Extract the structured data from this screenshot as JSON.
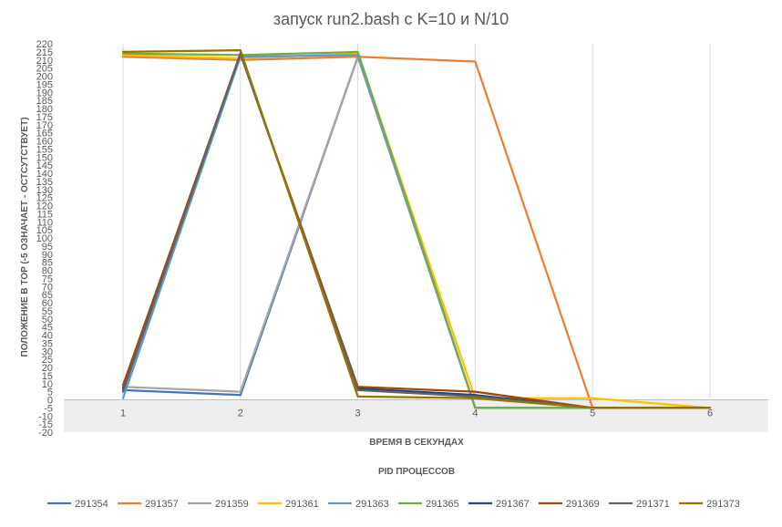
{
  "chart_data": {
    "type": "line",
    "title": "запуск run2.bash с K=10 и N/10",
    "xlabel": "ВРЕМЯ В СЕКУНДАХ",
    "ylabel": "ПОЛОЖЕНИЕ В TOP (-5 ОЗНАЧАЕТ - ОСТСУТСТВУЕТ)",
    "legend_title": "PID ПРОЦЕССОВ",
    "legend_position": "bottom",
    "x": [
      1,
      2,
      3,
      4,
      5,
      6
    ],
    "xlim": [
      1,
      6
    ],
    "ylim": [
      -20,
      220
    ],
    "ytick_step": 5,
    "grid": "vertical",
    "series": [
      {
        "name": "291354",
        "color": "#4472C4",
        "values": [
          6,
          3,
          212,
          -5,
          -5,
          -5
        ]
      },
      {
        "name": "291357",
        "color": "#ED7D31",
        "values": [
          212,
          210,
          212,
          209,
          -5,
          -5
        ]
      },
      {
        "name": "291359",
        "color": "#A5A5A5",
        "values": [
          8,
          5,
          212,
          -5,
          -5,
          -5
        ]
      },
      {
        "name": "291361",
        "color": "#FFC000",
        "values": [
          213,
          211,
          214,
          1,
          1,
          -5
        ]
      },
      {
        "name": "291363",
        "color": "#5B9BD5",
        "values": [
          1,
          212,
          213,
          -5,
          -5,
          -5
        ]
      },
      {
        "name": "291365",
        "color": "#70AD47",
        "values": [
          214,
          213,
          215,
          -5,
          -5,
          -5
        ]
      },
      {
        "name": "291367",
        "color": "#264478",
        "values": [
          7,
          214,
          7,
          3,
          -5,
          -5
        ]
      },
      {
        "name": "291369",
        "color": "#9E480E",
        "values": [
          9,
          214,
          8,
          5,
          -5,
          -5
        ]
      },
      {
        "name": "291371",
        "color": "#636363",
        "values": [
          5,
          214,
          6,
          2,
          -5,
          -5
        ]
      },
      {
        "name": "291373",
        "color": "#997300",
        "values": [
          215,
          216,
          2,
          1,
          -5,
          -5
        ]
      }
    ]
  }
}
